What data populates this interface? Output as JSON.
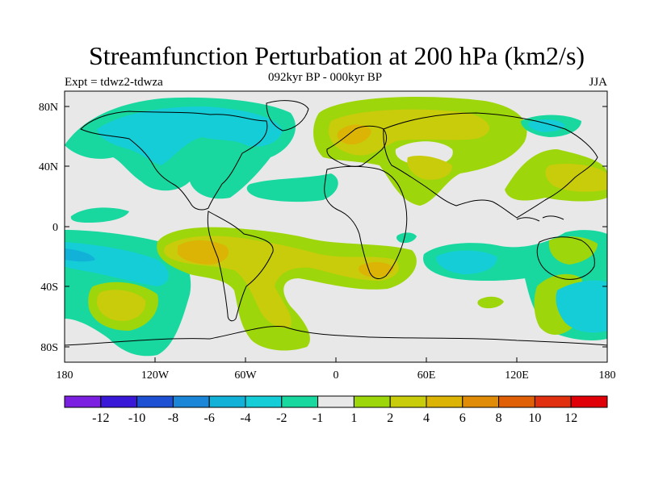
{
  "title": "Streamfunction Perturbation at 200 hPa (km2/s)",
  "subtitle": "092kyr BP - 000kyr BP",
  "experiment": "Expt = tdwz2-tdwza",
  "season": "JJA",
  "lat_ticks": [
    "80N",
    "40N",
    "0",
    "40S",
    "80S"
  ],
  "lon_ticks": [
    "180",
    "120W",
    "60W",
    "0",
    "60E",
    "120E",
    "180"
  ],
  "colorbar": {
    "labels": [
      "-12",
      "-10",
      "-8",
      "-6",
      "-4",
      "-2",
      "-1",
      "1",
      "2",
      "4",
      "6",
      "8",
      "10",
      "12"
    ],
    "colors": [
      "#7b1fe0",
      "#3a18d8",
      "#1e50d4",
      "#1b86d8",
      "#12b2d8",
      "#14cdd6",
      "#18d8a0",
      "#e8e8e8",
      "#9ed60c",
      "#c8cc0a",
      "#dcb406",
      "#e08c08",
      "#e06008",
      "#e03010",
      "#e00008"
    ]
  },
  "palette": {
    "neutral": "#e8e8e8",
    "pos1": "#9ed60c",
    "pos2": "#c8cc0a",
    "pos3": "#dcb406",
    "pos4": "#e08c08",
    "neg1": "#18d8a0",
    "neg2": "#14cdd6",
    "neg3": "#12b2d8"
  }
}
